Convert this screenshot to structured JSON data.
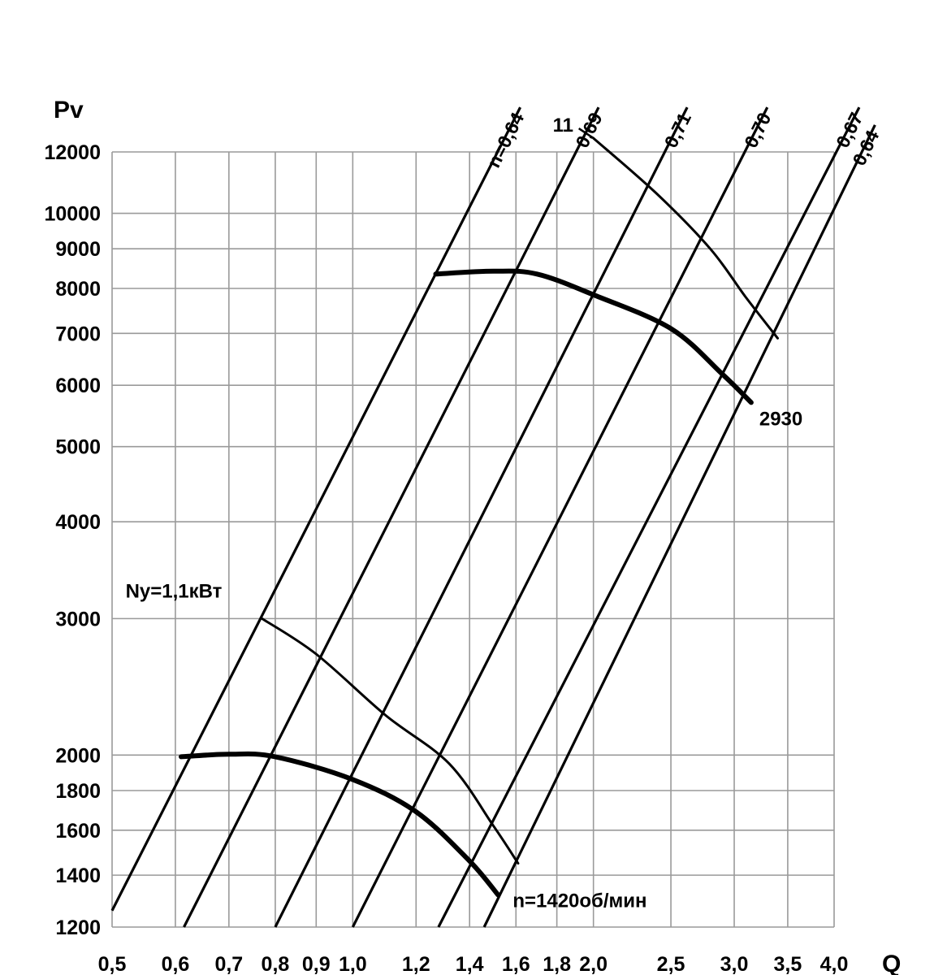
{
  "chart_data": {
    "type": "line",
    "title": "",
    "xlabel": "Q",
    "ylabel": "Pv",
    "x_scale": "log",
    "y_scale": "log",
    "xlim": [
      0.5,
      4.0
    ],
    "ylim": [
      1200,
      12000
    ],
    "grid": true,
    "legend": "none",
    "x_ticks": [
      0.5,
      0.6,
      0.7,
      0.8,
      0.9,
      1.0,
      1.2,
      1.4,
      1.6,
      1.8,
      2.0,
      2.5,
      3.0,
      3.5,
      4.0
    ],
    "x_tick_labels": [
      "0,5",
      "0,6",
      "0,7",
      "0,8",
      "0,9",
      "1,0",
      "1,2",
      "1,4",
      "1,6",
      "1,8",
      "2,0",
      "2,5",
      "3,0",
      "3,5",
      "4,0"
    ],
    "y_ticks": [
      1200,
      1400,
      1600,
      1800,
      2000,
      3000,
      4000,
      5000,
      6000,
      7000,
      8000,
      9000,
      10000,
      12000
    ],
    "y_tick_labels": [
      "1200",
      "1400",
      "1600",
      "1800",
      "2000",
      "3000",
      "4000",
      "5000",
      "6000",
      "7000",
      "8000",
      "9000",
      "10000",
      "12000"
    ],
    "efficiency_lines": [
      {
        "label": "n=0,64",
        "points": [
          [
            0.5,
            1260
          ],
          [
            1.62,
            13700
          ]
        ]
      },
      {
        "label": "0,69",
        "points": [
          [
            0.615,
            1200
          ],
          [
            2.03,
            13700
          ]
        ]
      },
      {
        "label": "0,71",
        "points": [
          [
            0.8,
            1200
          ],
          [
            2.62,
            13700
          ]
        ]
      },
      {
        "label": "0,70",
        "points": [
          [
            1.0,
            1200
          ],
          [
            3.3,
            13700
          ]
        ]
      },
      {
        "label": "0,67",
        "points": [
          [
            1.28,
            1200
          ],
          [
            4.3,
            13700
          ]
        ]
      },
      {
        "label": "0,64",
        "points": [
          [
            1.46,
            1200
          ],
          [
            4.5,
            13000
          ]
        ]
      }
    ],
    "series": [
      {
        "label": "n=1420об/мин",
        "stroke": "bold",
        "points": [
          [
            0.61,
            1990
          ],
          [
            0.7,
            2005
          ],
          [
            0.8,
            1990
          ],
          [
            1.0,
            1860
          ],
          [
            1.2,
            1690
          ],
          [
            1.4,
            1460
          ],
          [
            1.52,
            1320
          ]
        ]
      },
      {
        "label": "Ny=1,1кВт",
        "stroke": "thin",
        "points": [
          [
            0.77,
            3000
          ],
          [
            0.9,
            2700
          ],
          [
            1.1,
            2250
          ],
          [
            1.32,
            1950
          ],
          [
            1.5,
            1620
          ],
          [
            1.61,
            1450
          ]
        ]
      },
      {
        "label": "2930",
        "stroke": "bold",
        "points": [
          [
            1.27,
            8350
          ],
          [
            1.5,
            8420
          ],
          [
            1.7,
            8350
          ],
          [
            2.0,
            7850
          ],
          [
            2.5,
            7100
          ],
          [
            2.9,
            6200
          ],
          [
            3.15,
            5700
          ]
        ]
      },
      {
        "label": "11",
        "stroke": "thin",
        "points": [
          [
            2.0,
            12500
          ],
          [
            2.4,
            10600
          ],
          [
            2.8,
            9000
          ],
          [
            3.1,
            7800
          ],
          [
            3.4,
            6900
          ]
        ]
      }
    ],
    "annotations": [
      {
        "text": "Ny=1,1кВт",
        "at": [
          0.77,
          3000
        ]
      },
      {
        "text": "n=1420об/мин",
        "at": [
          1.52,
          1320
        ]
      },
      {
        "text": "2930",
        "at": [
          3.15,
          5700
        ]
      },
      {
        "text": "11",
        "at": [
          2.0,
          12500
        ]
      }
    ]
  }
}
